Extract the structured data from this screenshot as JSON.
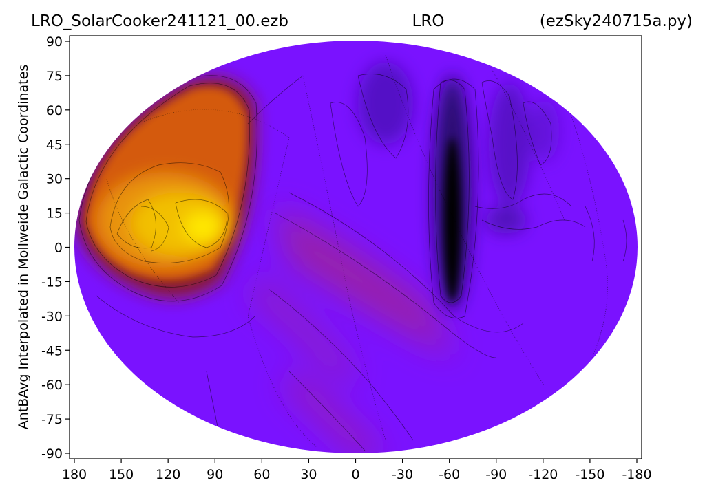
{
  "chart_data": {
    "type": "heatmap",
    "projection": "Mollweide",
    "title_left": "LRO_SolarCooker241121_00.ezb",
    "title_center": "LRO",
    "title_right": "(ezSky240715a.py)",
    "ylabel": "AntBAvg Interpolated in Mollweide Galactic Coordinates",
    "xlabel": "",
    "x_ticks": [
      "180",
      "150",
      "120",
      "90",
      "60",
      "30",
      "0",
      "-30",
      "-60",
      "-90",
      "-120",
      "-150",
      "-180"
    ],
    "y_ticks": [
      "90",
      "75",
      "60",
      "45",
      "30",
      "15",
      "0",
      "-15",
      "-30",
      "-45",
      "-60",
      "-75",
      "-90"
    ],
    "xlim": [
      180,
      -180
    ],
    "ylim": [
      -90,
      90
    ],
    "colormap": "gnuplot",
    "colors": {
      "background": "#7a12ff",
      "low": "#000000",
      "mid": "#b52a6a",
      "high": "#ffe000"
    },
    "features": [
      {
        "name": "hot-region",
        "lon": 105,
        "lat": 10,
        "level": "max"
      },
      {
        "name": "cold-band",
        "lon": -60,
        "lat": 10,
        "level": "min"
      },
      {
        "name": "warm-diagonal-band",
        "lon_range": [
          20,
          -50
        ],
        "lat_range": [
          10,
          -50
        ],
        "level": "mid"
      }
    ],
    "grid": false,
    "contours": true
  }
}
